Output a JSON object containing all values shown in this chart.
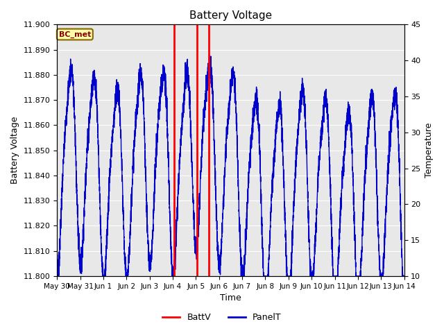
{
  "title": "Battery Voltage",
  "xlabel": "Time",
  "ylabel_left": "Battery Voltage",
  "ylabel_right": "Temperature",
  "ylim_left": [
    11.8,
    11.9
  ],
  "ylim_right": [
    10,
    45
  ],
  "background_color": "#ffffff",
  "plot_bg_color": "#e8e8e8",
  "grid_color": "#ffffff",
  "batt_line_color": "#ff0000",
  "panel_line_color": "#0000cc",
  "batt_line_y": 11.9,
  "batt_vlines_x": [
    5.05,
    6.05,
    6.55
  ],
  "xtick_labels": [
    "May 30",
    "May 31",
    "Jun 1",
    "Jun 2",
    "Jun 3",
    "Jun 4",
    "Jun 5",
    "Jun 6",
    "Jun 7",
    "Jun 8",
    "Jun 9",
    "Jun 10",
    "Jun 11",
    "Jun 12",
    "Jun 13",
    "Jun 14"
  ],
  "xtick_positions": [
    0,
    1,
    2,
    3,
    4,
    5,
    6,
    7,
    8,
    9,
    10,
    11,
    12,
    13,
    14,
    15
  ],
  "xlim": [
    0,
    15
  ],
  "legend_labels": [
    "BattV",
    "PanelT"
  ],
  "legend_colors": [
    "#ff0000",
    "#0000cc"
  ],
  "bc_met_label": "BC_met",
  "bc_met_bg": "#ffffaa",
  "bc_met_border": "#886600",
  "bc_met_text_color": "#880000"
}
